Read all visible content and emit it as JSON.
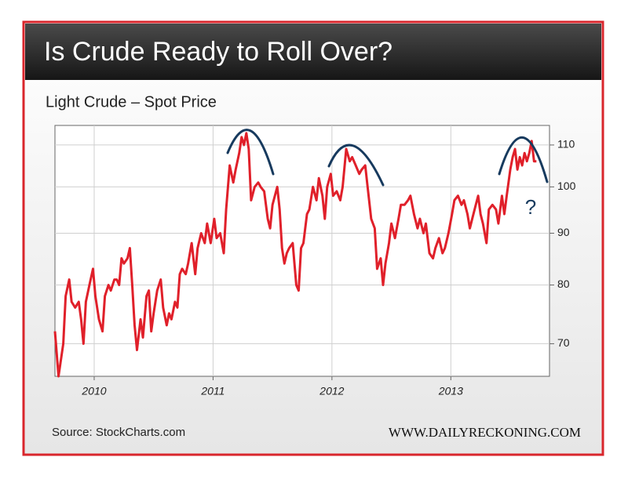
{
  "chart_data": {
    "type": "line",
    "title": "Is Crude Ready to Roll Over?",
    "subtitle": "Light Crude – Spot Price",
    "annotation": "?",
    "source": "Source: StockCharts.com",
    "credit": "WWW.DAILYRECKONING.COM",
    "log_scale": true,
    "grid": true,
    "xlim": [
      2009.67,
      2013.83
    ],
    "xticks": [
      2010,
      2011,
      2012,
      2013
    ],
    "ylim": [
      65,
      115
    ],
    "yticks": [
      70,
      80,
      90,
      100,
      110
    ],
    "x": [
      2009.67,
      2009.7,
      2009.74,
      2009.76,
      2009.79,
      2009.81,
      2009.84,
      2009.87,
      2009.89,
      2009.91,
      2009.93,
      2009.96,
      2009.99,
      2010.01,
      2010.04,
      2010.07,
      2010.09,
      2010.12,
      2010.14,
      2010.17,
      2010.19,
      2010.21,
      2010.23,
      2010.25,
      2010.28,
      2010.3,
      2010.32,
      2010.34,
      2010.36,
      2010.39,
      2010.41,
      2010.44,
      2010.46,
      2010.48,
      2010.5,
      2010.53,
      2010.56,
      2010.58,
      2010.61,
      2010.63,
      2010.65,
      2010.68,
      2010.7,
      2010.72,
      2010.74,
      2010.77,
      2010.79,
      2010.82,
      2010.85,
      2010.87,
      2010.9,
      2010.93,
      2010.95,
      2010.98,
      2011.01,
      2011.03,
      2011.06,
      2011.09,
      2011.11,
      2011.14,
      2011.17,
      2011.19,
      2011.22,
      2011.24,
      2011.26,
      2011.28,
      2011.3,
      2011.32,
      2011.35,
      2011.38,
      2011.4,
      2011.43,
      2011.46,
      2011.48,
      2011.5,
      2011.52,
      2011.54,
      2011.56,
      2011.58,
      2011.6,
      2011.62,
      2011.64,
      2011.67,
      2011.7,
      2011.72,
      2011.74,
      2011.76,
      2011.79,
      2011.81,
      2011.84,
      2011.87,
      2011.89,
      2011.92,
      2011.94,
      2011.96,
      2011.99,
      2012.01,
      2012.04,
      2012.07,
      2012.09,
      2012.12,
      2012.15,
      2012.17,
      2012.2,
      2012.23,
      2012.25,
      2012.28,
      2012.3,
      2012.33,
      2012.36,
      2012.38,
      2012.41,
      2012.43,
      2012.45,
      2012.48,
      2012.5,
      2012.53,
      2012.56,
      2012.58,
      2012.61,
      2012.64,
      2012.66,
      2012.69,
      2012.72,
      2012.74,
      2012.77,
      2012.79,
      2012.82,
      2012.85,
      2012.87,
      2012.9,
      2012.93,
      2012.95,
      2012.98,
      2013.01,
      2013.03,
      2013.06,
      2013.09,
      2013.11,
      2013.14,
      2013.16,
      2013.18,
      2013.21,
      2013.23,
      2013.25,
      2013.27,
      2013.3,
      2013.32,
      2013.35,
      2013.38,
      2013.4,
      2013.43,
      2013.45,
      2013.47,
      2013.5,
      2013.52,
      2013.54,
      2013.56,
      2013.58,
      2013.6,
      2013.62,
      2013.64,
      2013.66,
      2013.68,
      2013.7,
      2013.72
    ],
    "series": [
      {
        "name": "Light Crude",
        "color": "#e0202a",
        "values": [
          72,
          65,
          70,
          78,
          81,
          77,
          76,
          77,
          74,
          70,
          77,
          80,
          83,
          78,
          74,
          72,
          78,
          80,
          79,
          81,
          81,
          80,
          85,
          84,
          85,
          87,
          80,
          73,
          69,
          74,
          71,
          78,
          79,
          72,
          75,
          79,
          81,
          76,
          73,
          75,
          74,
          77,
          76,
          82,
          83,
          82,
          84,
          88,
          82,
          87,
          90,
          88,
          92,
          88,
          93,
          89,
          90,
          86,
          95,
          105,
          101,
          104,
          108,
          112,
          110,
          113,
          109,
          97,
          100,
          101,
          100,
          99,
          93,
          91,
          96,
          98,
          100,
          95,
          87,
          84,
          86,
          87,
          88,
          80,
          79,
          87,
          88,
          94,
          95,
          100,
          97,
          102,
          98,
          93,
          100,
          103,
          98,
          99,
          97,
          100,
          109,
          106,
          107,
          105,
          103,
          104,
          105,
          100,
          93,
          91,
          83,
          85,
          80,
          84,
          88,
          92,
          89,
          93,
          96,
          96,
          97,
          98,
          94,
          91,
          93,
          90,
          92,
          86,
          85,
          87,
          89,
          86,
          87,
          90,
          94,
          97,
          98,
          96,
          97,
          94,
          91,
          93,
          96,
          98,
          94,
          92,
          88,
          95,
          96,
          95,
          92,
          98,
          94,
          98,
          104,
          107,
          109,
          104,
          107,
          105,
          108,
          106,
          108,
          111,
          106,
          106
        ]
      }
    ]
  }
}
